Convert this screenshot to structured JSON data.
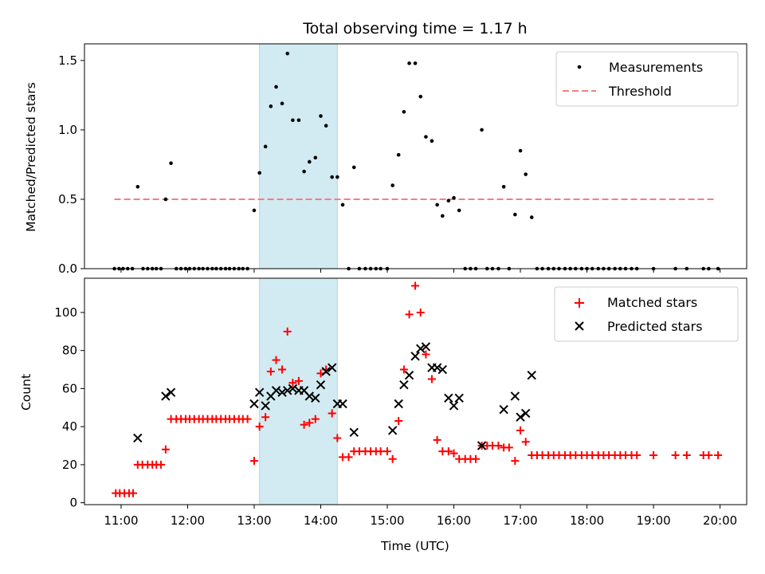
{
  "chart_data": {
    "type": "scatter",
    "title": "Total observing time = 1.17 h",
    "xlabel": "Time (UTC)",
    "x_ticks": [
      "11:00",
      "12:00",
      "13:00",
      "14:00",
      "15:00",
      "16:00",
      "17:00",
      "18:00",
      "19:00",
      "20:00"
    ],
    "xlim": [
      10.45,
      20.4
    ],
    "highlight_span": [
      13.08,
      14.25
    ],
    "colors": {
      "matched": "#ff0000",
      "predicted": "#000000",
      "threshold": "#f08080",
      "highlight": "#add8e6",
      "measure": "#000000"
    },
    "panels": [
      {
        "name": "ratio",
        "ylabel": "Matched/Predicted stars",
        "ylim": [
          0,
          1.62
        ],
        "y_ticks": [
          "0.0",
          "0.5",
          "1.0",
          "1.5"
        ],
        "y_tick_values": [
          0,
          0.5,
          1.0,
          1.5
        ],
        "legend": [
          "Measurements",
          "Threshold"
        ],
        "threshold": {
          "value": 0.5,
          "x_range": [
            10.9,
            19.95
          ]
        },
        "measurements": [
          [
            10.9,
            0
          ],
          [
            10.97,
            0
          ],
          [
            11.03,
            0
          ],
          [
            11.1,
            0
          ],
          [
            11.17,
            0
          ],
          [
            11.25,
            0.59
          ],
          [
            11.33,
            0
          ],
          [
            11.4,
            0
          ],
          [
            11.47,
            0
          ],
          [
            11.53,
            0
          ],
          [
            11.6,
            0
          ],
          [
            11.67,
            0.5
          ],
          [
            11.75,
            0.76
          ],
          [
            11.83,
            0
          ],
          [
            11.9,
            0
          ],
          [
            11.97,
            0
          ],
          [
            12.03,
            0
          ],
          [
            12.1,
            0
          ],
          [
            12.17,
            0
          ],
          [
            12.23,
            0
          ],
          [
            12.3,
            0
          ],
          [
            12.37,
            0
          ],
          [
            12.43,
            0
          ],
          [
            12.5,
            0
          ],
          [
            12.57,
            0
          ],
          [
            12.63,
            0
          ],
          [
            12.7,
            0
          ],
          [
            12.77,
            0
          ],
          [
            12.83,
            0
          ],
          [
            12.9,
            0
          ],
          [
            13.0,
            0.42
          ],
          [
            13.08,
            0.69
          ],
          [
            13.17,
            0.88
          ],
          [
            13.25,
            1.17
          ],
          [
            13.33,
            1.31
          ],
          [
            13.42,
            1.19
          ],
          [
            13.5,
            1.55
          ],
          [
            13.58,
            1.07
          ],
          [
            13.67,
            1.07
          ],
          [
            13.75,
            0.7
          ],
          [
            13.83,
            0.77
          ],
          [
            13.92,
            0.8
          ],
          [
            14.0,
            1.1
          ],
          [
            14.08,
            1.03
          ],
          [
            14.17,
            0.66
          ],
          [
            14.25,
            0.66
          ],
          [
            14.33,
            0.46
          ],
          [
            14.42,
            0
          ],
          [
            14.5,
            0.73
          ],
          [
            14.58,
            0
          ],
          [
            14.67,
            0
          ],
          [
            14.75,
            0
          ],
          [
            14.83,
            0
          ],
          [
            14.9,
            0
          ],
          [
            15.0,
            0
          ],
          [
            15.08,
            0.6
          ],
          [
            15.17,
            0.82
          ],
          [
            15.25,
            1.13
          ],
          [
            15.33,
            1.48
          ],
          [
            15.42,
            1.48
          ],
          [
            15.5,
            1.24
          ],
          [
            15.58,
            0.95
          ],
          [
            15.67,
            0.92
          ],
          [
            15.75,
            0.46
          ],
          [
            15.83,
            0.38
          ],
          [
            15.92,
            0.49
          ],
          [
            16.0,
            0.51
          ],
          [
            16.08,
            0.42
          ],
          [
            16.17,
            0
          ],
          [
            16.25,
            0
          ],
          [
            16.33,
            0
          ],
          [
            16.42,
            1.0
          ],
          [
            16.5,
            0
          ],
          [
            16.58,
            0
          ],
          [
            16.67,
            0
          ],
          [
            16.75,
            0.59
          ],
          [
            16.83,
            0
          ],
          [
            16.92,
            0.39
          ],
          [
            17.0,
            0.85
          ],
          [
            17.08,
            0.68
          ],
          [
            17.17,
            0.37
          ],
          [
            17.25,
            0
          ],
          [
            17.33,
            0
          ],
          [
            17.42,
            0
          ],
          [
            17.5,
            0
          ],
          [
            17.58,
            0
          ],
          [
            17.67,
            0
          ],
          [
            17.75,
            0
          ],
          [
            17.83,
            0
          ],
          [
            17.92,
            0
          ],
          [
            18.0,
            0
          ],
          [
            18.08,
            0
          ],
          [
            18.17,
            0
          ],
          [
            18.25,
            0
          ],
          [
            18.33,
            0
          ],
          [
            18.42,
            0
          ],
          [
            18.5,
            0
          ],
          [
            18.58,
            0
          ],
          [
            18.67,
            0
          ],
          [
            18.75,
            0
          ],
          [
            19.0,
            0
          ],
          [
            19.33,
            0
          ],
          [
            19.5,
            0
          ],
          [
            19.75,
            0
          ],
          [
            19.83,
            0
          ],
          [
            19.97,
            0
          ]
        ]
      },
      {
        "name": "count",
        "ylabel": "Count",
        "ylim": [
          -1,
          118
        ],
        "y_ticks": [
          "0",
          "20",
          "40",
          "60",
          "80",
          "100"
        ],
        "y_tick_values": [
          0,
          20,
          40,
          60,
          80,
          100
        ],
        "legend": [
          "Matched stars",
          "Predicted stars"
        ],
        "matched": [
          [
            10.92,
            5
          ],
          [
            10.98,
            5
          ],
          [
            11.05,
            5
          ],
          [
            11.12,
            5
          ],
          [
            11.18,
            5
          ],
          [
            11.25,
            20
          ],
          [
            11.32,
            20
          ],
          [
            11.4,
            20
          ],
          [
            11.47,
            20
          ],
          [
            11.53,
            20
          ],
          [
            11.6,
            20
          ],
          [
            11.67,
            28
          ],
          [
            11.75,
            44
          ],
          [
            11.83,
            44
          ],
          [
            11.9,
            44
          ],
          [
            11.97,
            44
          ],
          [
            12.03,
            44
          ],
          [
            12.1,
            44
          ],
          [
            12.17,
            44
          ],
          [
            12.23,
            44
          ],
          [
            12.3,
            44
          ],
          [
            12.37,
            44
          ],
          [
            12.43,
            44
          ],
          [
            12.5,
            44
          ],
          [
            12.57,
            44
          ],
          [
            12.63,
            44
          ],
          [
            12.7,
            44
          ],
          [
            12.77,
            44
          ],
          [
            12.83,
            44
          ],
          [
            12.9,
            44
          ],
          [
            13.0,
            22
          ],
          [
            13.08,
            40
          ],
          [
            13.17,
            45
          ],
          [
            13.25,
            69
          ],
          [
            13.33,
            75
          ],
          [
            13.42,
            70
          ],
          [
            13.5,
            90
          ],
          [
            13.58,
            63
          ],
          [
            13.67,
            64
          ],
          [
            13.75,
            41
          ],
          [
            13.83,
            42
          ],
          [
            13.92,
            44
          ],
          [
            14.0,
            68
          ],
          [
            14.08,
            70
          ],
          [
            14.17,
            47
          ],
          [
            14.25,
            34
          ],
          [
            14.33,
            24
          ],
          [
            14.42,
            24
          ],
          [
            14.5,
            27
          ],
          [
            14.58,
            27
          ],
          [
            14.67,
            27
          ],
          [
            14.75,
            27
          ],
          [
            14.83,
            27
          ],
          [
            14.9,
            27
          ],
          [
            15.0,
            27
          ],
          [
            15.08,
            23
          ],
          [
            15.17,
            43
          ],
          [
            15.25,
            70
          ],
          [
            15.33,
            99
          ],
          [
            15.42,
            114
          ],
          [
            15.5,
            100
          ],
          [
            15.58,
            78
          ],
          [
            15.67,
            65
          ],
          [
            15.75,
            33
          ],
          [
            15.83,
            27
          ],
          [
            15.92,
            27
          ],
          [
            16.0,
            26
          ],
          [
            16.08,
            23
          ],
          [
            16.17,
            23
          ],
          [
            16.25,
            23
          ],
          [
            16.33,
            23
          ],
          [
            16.42,
            30
          ],
          [
            16.5,
            30
          ],
          [
            16.58,
            30
          ],
          [
            16.67,
            30
          ],
          [
            16.75,
            29
          ],
          [
            16.83,
            29
          ],
          [
            16.92,
            22
          ],
          [
            17.0,
            38
          ],
          [
            17.08,
            32
          ],
          [
            17.17,
            25
          ],
          [
            17.25,
            25
          ],
          [
            17.33,
            25
          ],
          [
            17.42,
            25
          ],
          [
            17.5,
            25
          ],
          [
            17.58,
            25
          ],
          [
            17.67,
            25
          ],
          [
            17.75,
            25
          ],
          [
            17.83,
            25
          ],
          [
            17.92,
            25
          ],
          [
            18.0,
            25
          ],
          [
            18.08,
            25
          ],
          [
            18.17,
            25
          ],
          [
            18.25,
            25
          ],
          [
            18.33,
            25
          ],
          [
            18.42,
            25
          ],
          [
            18.5,
            25
          ],
          [
            18.58,
            25
          ],
          [
            18.67,
            25
          ],
          [
            18.75,
            25
          ],
          [
            19.0,
            25
          ],
          [
            19.33,
            25
          ],
          [
            19.5,
            25
          ],
          [
            19.75,
            25
          ],
          [
            19.83,
            25
          ],
          [
            19.97,
            25
          ]
        ],
        "predicted": [
          [
            11.25,
            34
          ],
          [
            11.67,
            56
          ],
          [
            11.75,
            58
          ],
          [
            13.0,
            52
          ],
          [
            13.08,
            58
          ],
          [
            13.17,
            51
          ],
          [
            13.25,
            56
          ],
          [
            13.33,
            59
          ],
          [
            13.42,
            58
          ],
          [
            13.5,
            59
          ],
          [
            13.58,
            60
          ],
          [
            13.67,
            59
          ],
          [
            13.75,
            59
          ],
          [
            13.83,
            56
          ],
          [
            13.92,
            55
          ],
          [
            14.0,
            62
          ],
          [
            14.08,
            69
          ],
          [
            14.17,
            71
          ],
          [
            14.25,
            52
          ],
          [
            14.33,
            52
          ],
          [
            14.5,
            37
          ],
          [
            15.08,
            38
          ],
          [
            15.17,
            52
          ],
          [
            15.25,
            62
          ],
          [
            15.33,
            67
          ],
          [
            15.42,
            77
          ],
          [
            15.5,
            81
          ],
          [
            15.58,
            82
          ],
          [
            15.67,
            71
          ],
          [
            15.75,
            71
          ],
          [
            15.83,
            70
          ],
          [
            15.92,
            55
          ],
          [
            16.0,
            51
          ],
          [
            16.08,
            55
          ],
          [
            16.42,
            30
          ],
          [
            16.75,
            49
          ],
          [
            16.92,
            56
          ],
          [
            17.0,
            45
          ],
          [
            17.08,
            47
          ],
          [
            17.17,
            67
          ]
        ]
      }
    ]
  }
}
